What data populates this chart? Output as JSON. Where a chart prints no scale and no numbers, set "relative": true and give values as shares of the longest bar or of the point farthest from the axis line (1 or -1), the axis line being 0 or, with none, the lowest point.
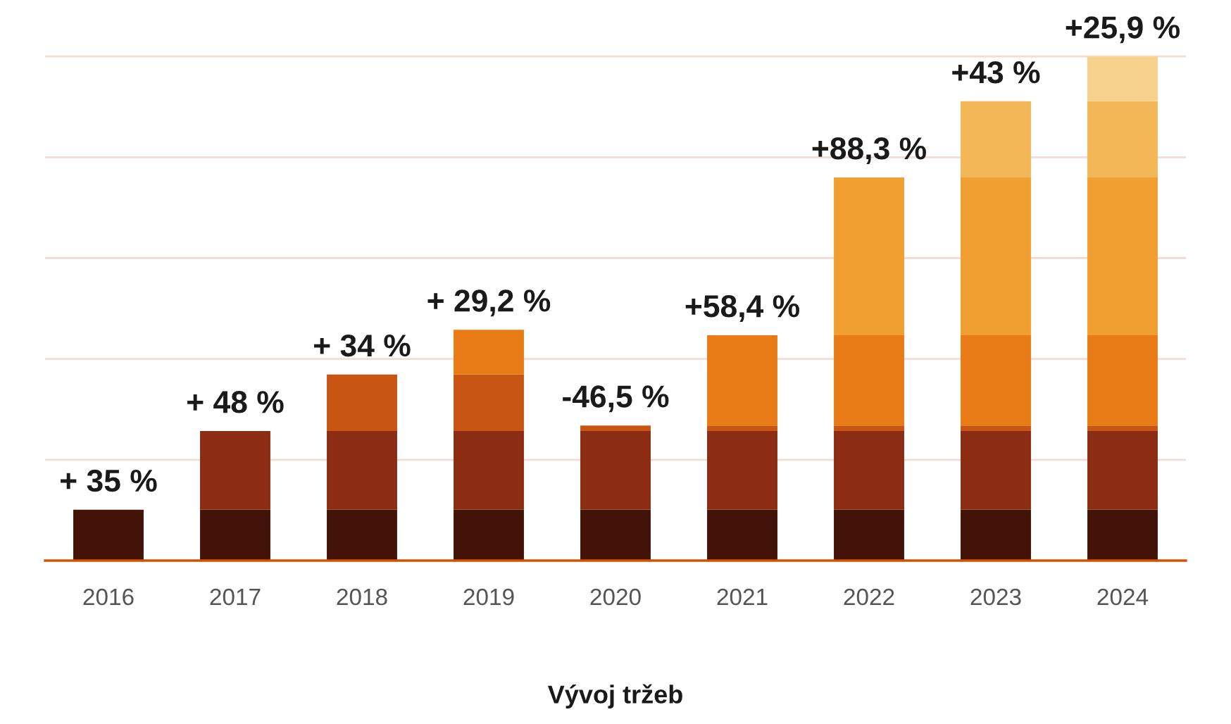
{
  "chart_data": {
    "type": "bar",
    "stacked": true,
    "relative": true,
    "grid": "y",
    "legend": false,
    "categories": [
      "2016",
      "2017",
      "2018",
      "2019",
      "2020",
      "2021",
      "2022",
      "2023",
      "2024"
    ],
    "xlabel": "Vývoj tržeb",
    "series": [
      {
        "color": "#431308",
        "values": [
          0.101,
          0.101,
          0.101,
          0.101,
          0.101,
          0.101,
          0.101,
          0.101,
          0.101
        ]
      },
      {
        "color": "#8b2c13",
        "values": [
          null,
          0.156,
          0.156,
          0.156,
          0.156,
          0.156,
          0.156,
          0.156,
          0.156
        ]
      },
      {
        "color": "#c85511",
        "values": [
          null,
          null,
          0.112,
          0.112,
          0.011,
          0.011,
          0.011,
          0.011,
          0.011
        ]
      },
      {
        "color": "#e87b16",
        "values": [
          null,
          null,
          null,
          0.089,
          null,
          0.179,
          0.179,
          0.179,
          0.179
        ]
      },
      {
        "color": "#f19f31",
        "values": [
          null,
          null,
          null,
          null,
          null,
          null,
          0.313,
          0.313,
          0.313
        ]
      },
      {
        "color": "#f4b757",
        "values": [
          null,
          null,
          null,
          null,
          null,
          null,
          null,
          0.151,
          0.151
        ]
      },
      {
        "color": "#f7d28d",
        "values": [
          null,
          null,
          null,
          null,
          null,
          null,
          null,
          null,
          0.089
        ]
      }
    ],
    "annotations": [
      {
        "text": "+ 35 %",
        "x": "2016",
        "y": 0.101
      },
      {
        "text": "+ 48 %",
        "x": "2017",
        "y": 0.257
      },
      {
        "text": "+ 34 %",
        "x": "2018",
        "y": 0.369
      },
      {
        "text": "+ 29,2 %",
        "x": "2019",
        "y": 0.458
      },
      {
        "text": "-46,5 %",
        "x": "2020",
        "y": 0.268
      },
      {
        "text": "+58,4 %",
        "x": "2021",
        "y": 0.447
      },
      {
        "text": "+88,3 %",
        "x": "2022",
        "y": 0.76
      },
      {
        "text": "+43 %",
        "x": "2023",
        "y": 0.911
      },
      {
        "text": "+25,9 %",
        "x": "2024",
        "y": 1.0
      }
    ]
  }
}
